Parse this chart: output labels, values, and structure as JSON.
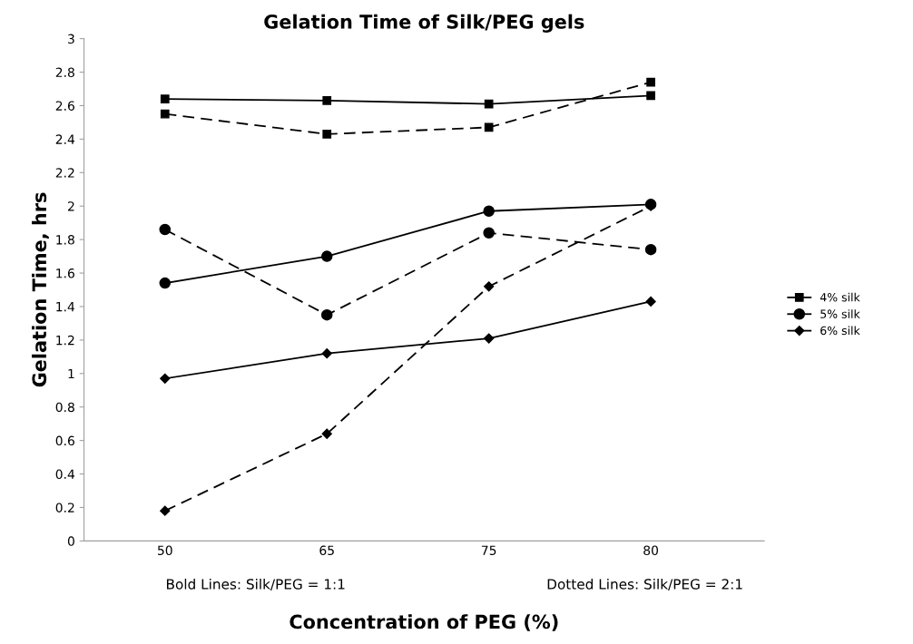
{
  "chart_data": {
    "type": "line",
    "title": "Gelation Time of Silk/PEG gels",
    "xlabel": "Concentration of PEG (%)",
    "ylabel": "Gelation Time, hrs",
    "categories": [
      "50",
      "65",
      "75",
      "80"
    ],
    "series": [
      {
        "name": "4% silk",
        "color": "#000000",
        "marker": "square",
        "line_style": "solid",
        "values": [
          2.64,
          2.63,
          2.61,
          2.66
        ]
      },
      {
        "name": "5% silk",
        "color": "#000000",
        "marker": "circle",
        "line_style": "solid",
        "values": [
          1.54,
          1.7,
          1.97,
          2.01
        ]
      },
      {
        "name": "6% silk",
        "color": "#000000",
        "marker": "diamond",
        "line_style": "solid",
        "values": [
          0.97,
          1.12,
          1.21,
          1.43
        ]
      },
      {
        "color": "#000000",
        "marker": "square",
        "line_style": "dashed",
        "values": [
          2.55,
          2.43,
          2.47,
          2.74
        ]
      },
      {
        "color": "#000000",
        "marker": "circle",
        "line_style": "dashed",
        "values": [
          1.86,
          1.35,
          1.84,
          1.74
        ]
      },
      {
        "color": "#000000",
        "marker": "diamond",
        "line_style": "dashed",
        "values": [
          0.18,
          0.64,
          1.52,
          2.0
        ]
      }
    ],
    "ylim": [
      0,
      3
    ],
    "yticks": [
      0,
      0.2,
      0.4,
      0.6,
      0.8,
      1,
      1.2,
      1.4,
      1.6,
      1.8,
      2,
      2.2,
      2.4,
      2.6,
      2.8,
      3
    ],
    "grid": false,
    "legend": "right",
    "annotations": [
      "Bold Lines: Silk/PEG = 1:1",
      "Dotted Lines: Silk/PEG = 2:1"
    ]
  }
}
